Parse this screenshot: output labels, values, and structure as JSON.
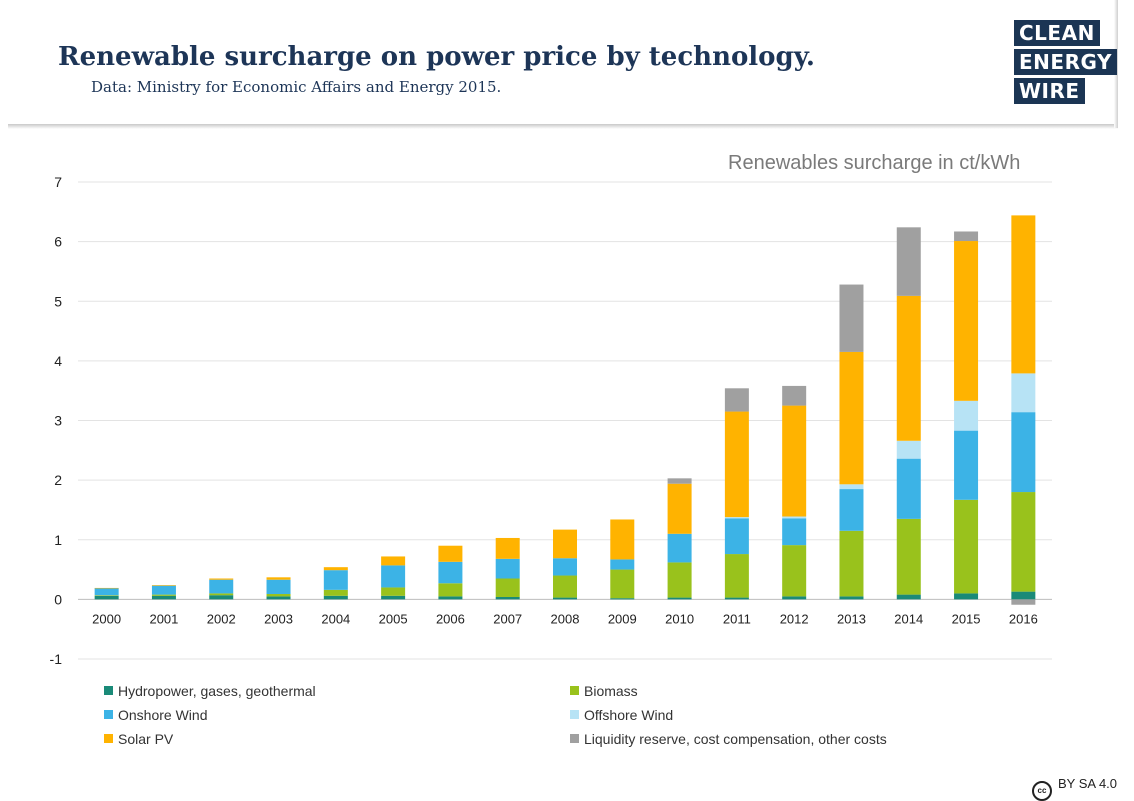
{
  "header": {
    "title": "Renewable surcharge on power price by technology.",
    "subtitle": "Data: Ministry for Economic Affairs and Energy 2015.",
    "logo_lines": [
      "CLEAN",
      "ENERGY",
      "WIRE"
    ]
  },
  "license": "BY SA 4.0",
  "license_icon": "cc-icon",
  "chart_data": {
    "type": "bar",
    "stacked": true,
    "title": "",
    "unit_label": "Renewables surcharge in ct/kWh",
    "xlabel": "",
    "ylabel": "",
    "ylim": [
      -1,
      7
    ],
    "yticks": [
      "-1",
      "0",
      "1",
      "2",
      "3",
      "4",
      "5",
      "6",
      "7"
    ],
    "grid": true,
    "legend_position": "bottom",
    "categories": [
      "2000",
      "2001",
      "2002",
      "2003",
      "2004",
      "2005",
      "2006",
      "2007",
      "2008",
      "2009",
      "2010",
      "2011",
      "2012",
      "2013",
      "2014",
      "2015",
      "2016"
    ],
    "series": [
      {
        "name": "Hydropower, gases, geothermal",
        "color": "#1a8a78",
        "values": [
          0.06,
          0.06,
          0.07,
          0.05,
          0.06,
          0.06,
          0.05,
          0.04,
          0.03,
          0.02,
          0.03,
          0.03,
          0.05,
          0.05,
          0.08,
          0.1,
          0.13
        ]
      },
      {
        "name": "Biomass",
        "color": "#99c21c",
        "values": [
          0.01,
          0.02,
          0.03,
          0.04,
          0.1,
          0.14,
          0.22,
          0.31,
          0.37,
          0.48,
          0.59,
          0.73,
          0.86,
          1.1,
          1.27,
          1.57,
          1.67
        ]
      },
      {
        "name": "Onshore Wind",
        "color": "#3cb3e6",
        "values": [
          0.12,
          0.15,
          0.23,
          0.24,
          0.33,
          0.37,
          0.36,
          0.33,
          0.29,
          0.17,
          0.48,
          0.6,
          0.45,
          0.7,
          1.01,
          1.16,
          1.34
        ]
      },
      {
        "name": "Offshore Wind",
        "color": "#b7e3f5",
        "values": [
          0,
          0,
          0,
          0,
          0,
          0,
          0,
          0,
          0,
          0,
          0,
          0.02,
          0.03,
          0.08,
          0.3,
          0.5,
          0.65
        ]
      },
      {
        "name": "Solar PV",
        "color": "#ffb300",
        "values": [
          0.002,
          0.01,
          0.02,
          0.04,
          0.05,
          0.15,
          0.27,
          0.35,
          0.48,
          0.67,
          0.84,
          1.77,
          1.86,
          2.22,
          2.43,
          2.68,
          2.65
        ]
      },
      {
        "name": "Liquidity reserve, cost compensation, other costs",
        "color": "#a0a0a0",
        "values": [
          0,
          0,
          0,
          0,
          0,
          0,
          0,
          0,
          0,
          0,
          0.09,
          0.39,
          0.33,
          1.13,
          1.15,
          0.16,
          -0.09
        ]
      }
    ]
  }
}
